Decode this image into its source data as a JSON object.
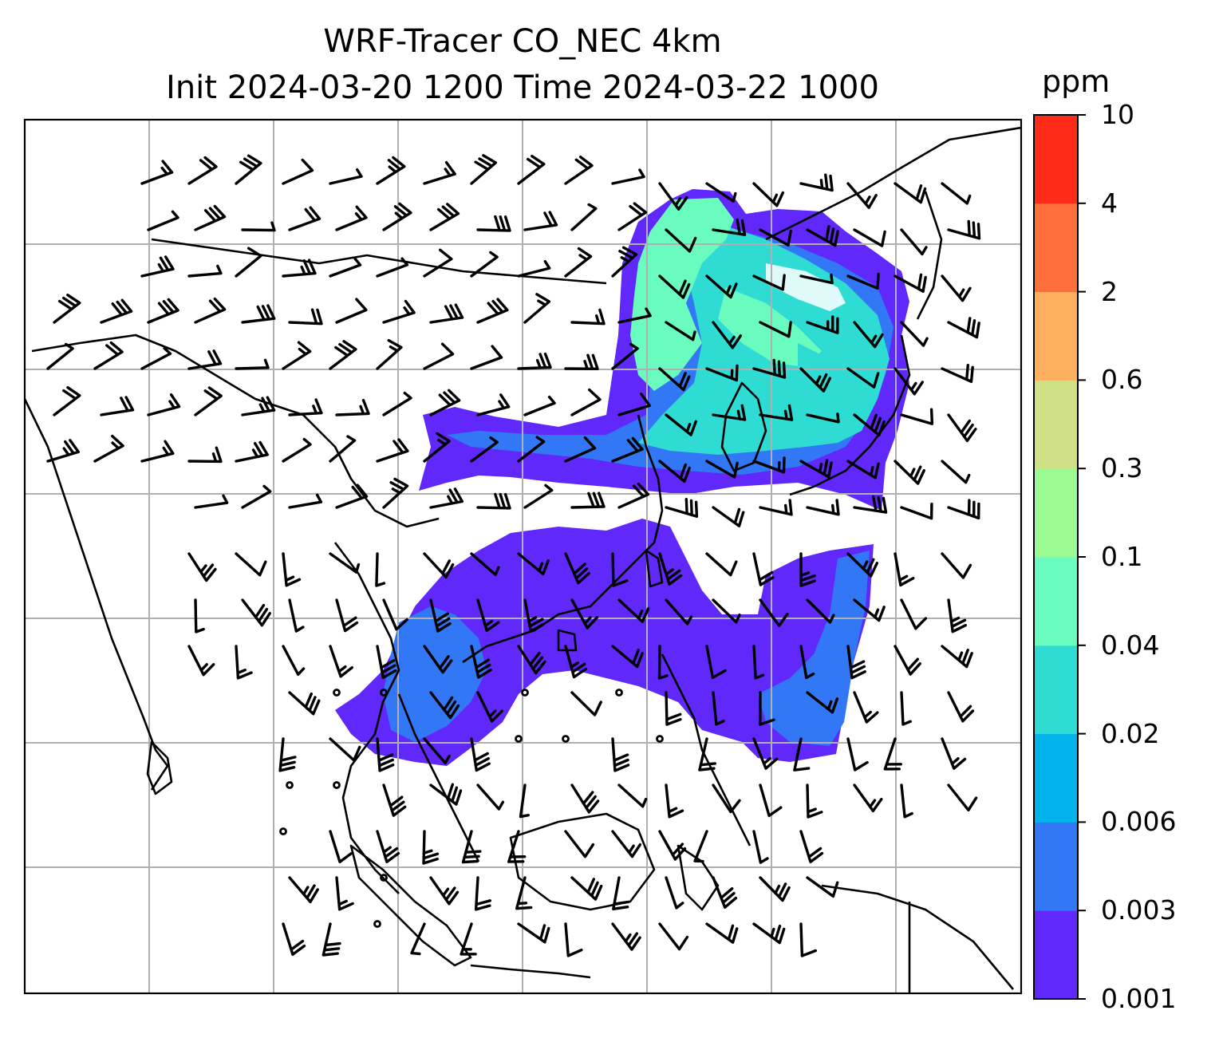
{
  "header": {
    "title_line1": "WRF-Tracer CO_NEC 4km",
    "title_line2": "Init 2024-03-20 1200 Time 2024-03-22 1000"
  },
  "colorbar": {
    "unit": "ppm",
    "levels": [
      "0.001",
      "0.003",
      "0.006",
      "0.02",
      "0.04",
      "0.1",
      "0.3",
      "0.6",
      "2",
      "4",
      "10"
    ],
    "colors": [
      "#6028fb",
      "#3277f5",
      "#02b3ec",
      "#2edcd3",
      "#6afbbe",
      "#9bfa91",
      "#cfe086",
      "#ffaf60",
      "#ff6f3b",
      "#ff2a18"
    ]
  },
  "map": {
    "tracer": "CO_NEC",
    "resolution": "4km",
    "grid": "on",
    "plume_colors": {
      "low": "#6028fb",
      "mid": "#3277f5",
      "high": "#2edcd3",
      "peak": "#6afbbe"
    },
    "coastline_color": "#000000",
    "grid_color": "#b0b0b0"
  }
}
